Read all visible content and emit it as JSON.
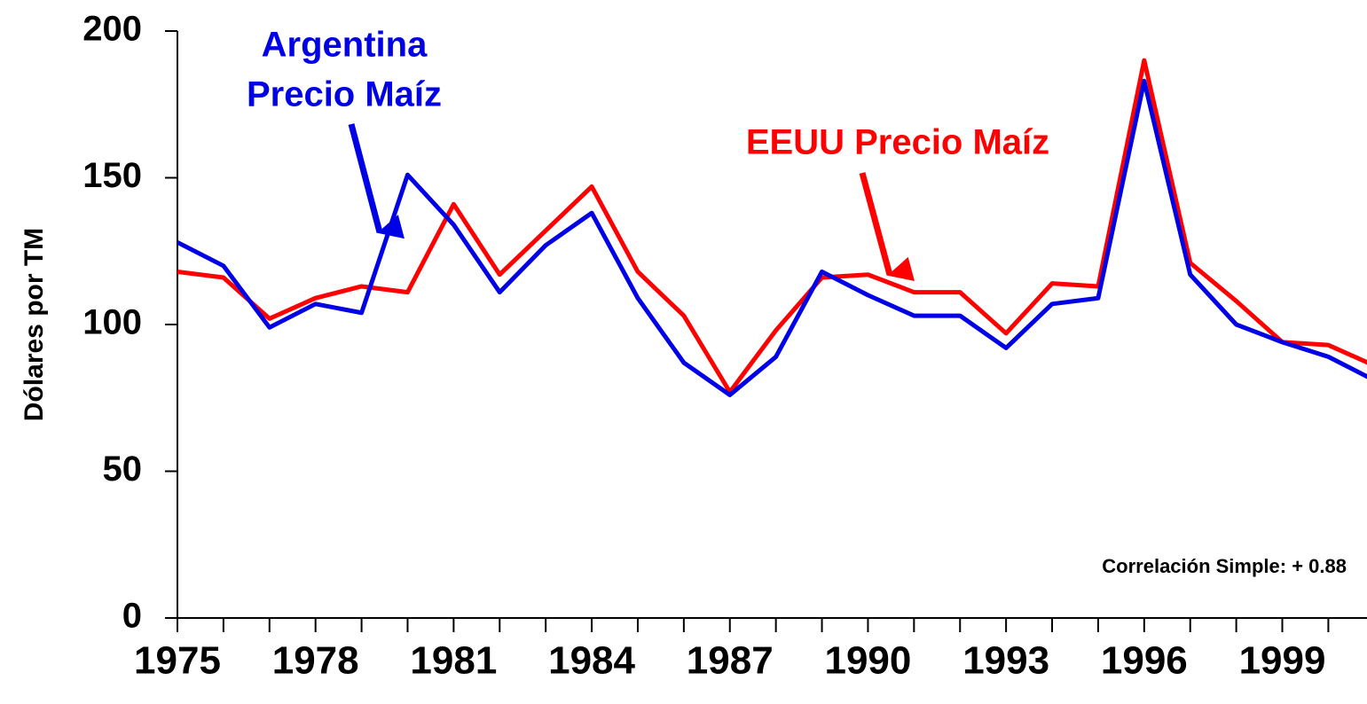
{
  "chart_data": {
    "type": "line",
    "y_label": "Dólares por TM",
    "x": [
      1975,
      1976,
      1977,
      1978,
      1979,
      1980,
      1981,
      1982,
      1983,
      1984,
      1985,
      1986,
      1987,
      1988,
      1989,
      1990,
      1991,
      1992,
      1993,
      1994,
      1995,
      1996,
      1997,
      1998,
      1999,
      2000,
      2001
    ],
    "series": [
      {
        "name": "EEUU Precio Maíz",
        "color": "#ff0000",
        "values": [
          118,
          116,
          102,
          109,
          113,
          111,
          141,
          117,
          132,
          147,
          118,
          103,
          77,
          98,
          116,
          117,
          111,
          111,
          97,
          114,
          113,
          190,
          121,
          108,
          94,
          93,
          86
        ]
      },
      {
        "name": "Argentina Precio Maíz",
        "color": "#0000e6",
        "values": [
          128,
          120,
          99,
          107,
          104,
          151,
          134,
          111,
          127,
          138,
          109,
          87,
          76,
          89,
          118,
          110,
          103,
          103,
          92,
          107,
          109,
          183,
          117,
          100,
          94,
          89,
          81
        ]
      }
    ],
    "annotations": {
      "argentina_1": "Argentina",
      "argentina_2": "Precio Maíz",
      "eeuu": "EEUU Precio Maíz",
      "correlation": "Correlación Simple: + 0.88"
    },
    "xlim": [
      1975,
      2000.84
    ],
    "xticks": [
      1975,
      1978,
      1981,
      1984,
      1987,
      1990,
      1993,
      1996,
      1999
    ],
    "x_minor_ticks": [
      1975,
      1976,
      1977,
      1978,
      1979,
      1980,
      1981,
      1982,
      1983,
      1984,
      1985,
      1986,
      1987,
      1988,
      1989,
      1990,
      1991,
      1992,
      1993,
      1994,
      1995,
      1996,
      1997,
      1998,
      1999,
      2000
    ],
    "ylim": [
      0,
      200
    ],
    "yticks": [
      0,
      50,
      100,
      150,
      200
    ]
  }
}
